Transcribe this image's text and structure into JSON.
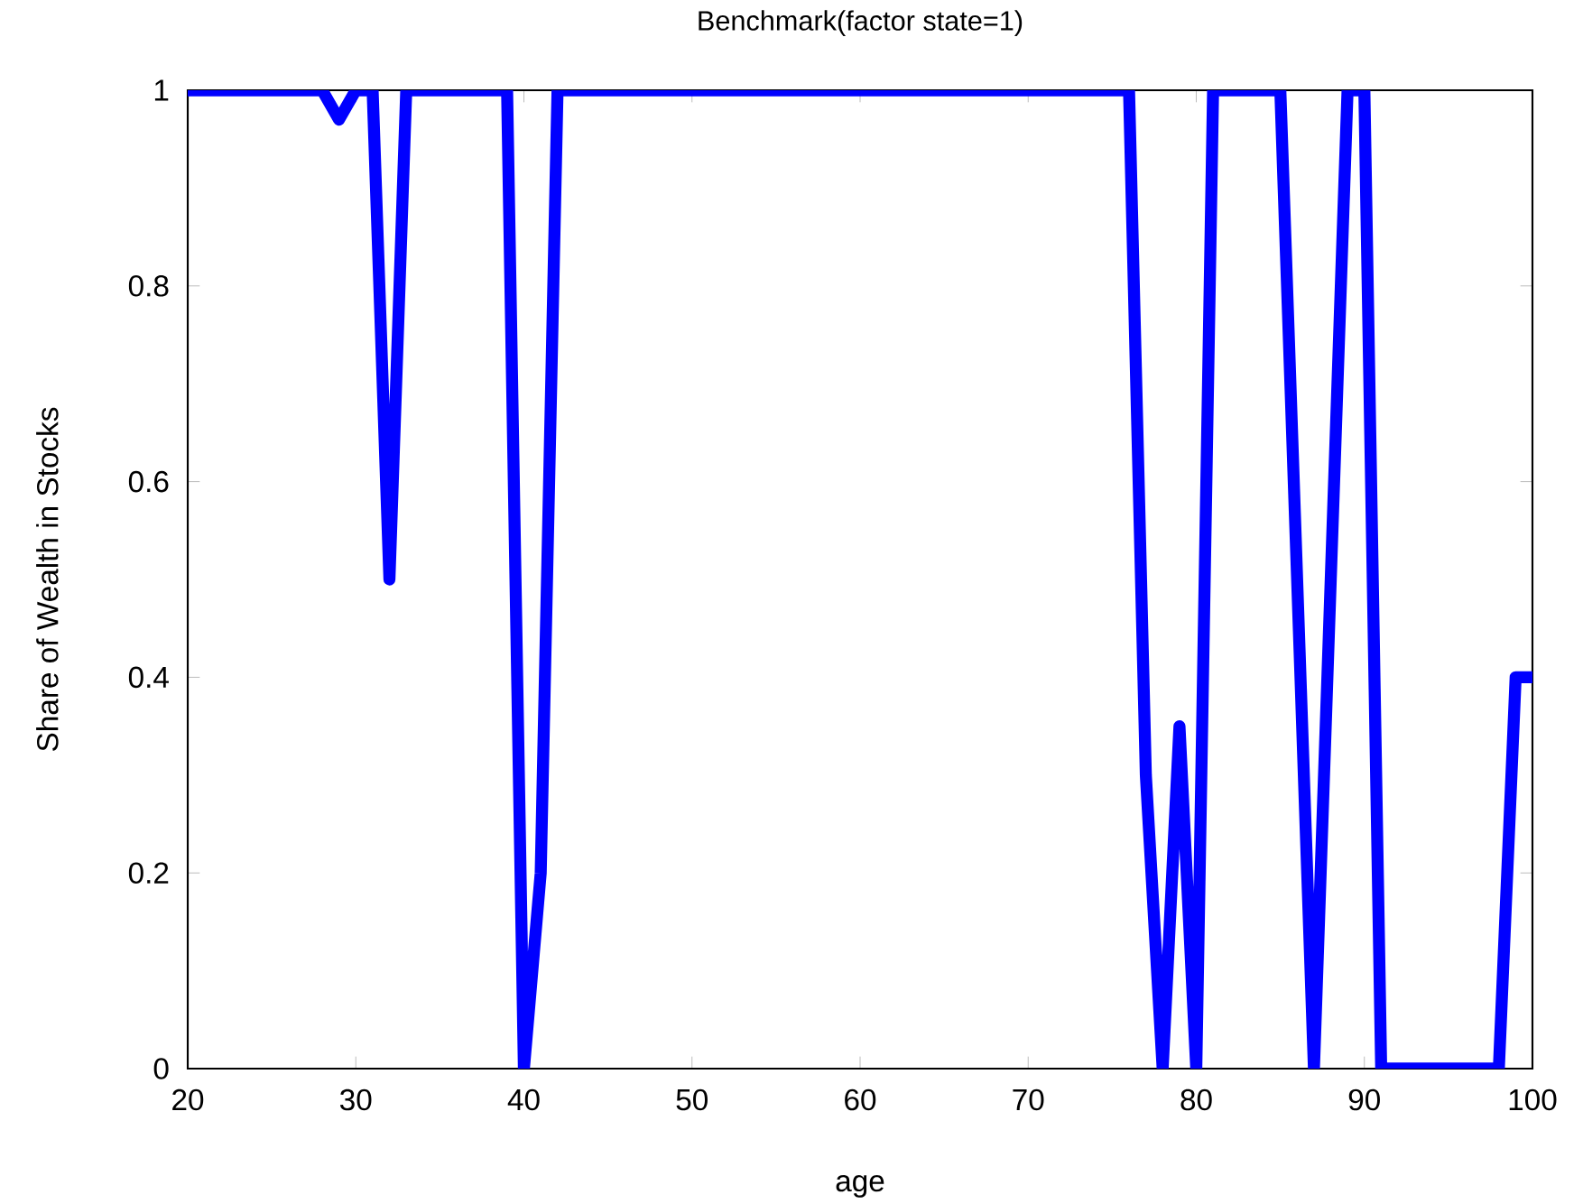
{
  "chart_data": {
    "type": "line",
    "title": "Benchmark(factor state=1)",
    "xlabel": "age",
    "ylabel": "Share of Wealth in Stocks",
    "x": [
      20,
      21,
      22,
      23,
      24,
      25,
      26,
      27,
      28,
      29,
      30,
      31,
      32,
      33,
      34,
      35,
      36,
      37,
      38,
      39,
      40,
      41,
      42,
      43,
      44,
      45,
      46,
      47,
      48,
      49,
      50,
      51,
      52,
      53,
      54,
      55,
      56,
      57,
      58,
      59,
      60,
      61,
      62,
      63,
      64,
      65,
      66,
      67,
      68,
      69,
      70,
      71,
      72,
      73,
      74,
      75,
      76,
      77,
      78,
      79,
      80,
      81,
      82,
      83,
      84,
      85,
      86,
      87,
      88,
      89,
      90,
      91,
      92,
      93,
      94,
      95,
      96,
      97,
      98,
      99,
      100
    ],
    "series": [
      {
        "color": "#0000ff",
        "values": [
          1,
          1,
          1,
          1,
          1,
          1,
          1,
          1,
          1,
          0.97,
          1,
          1,
          0.5,
          1,
          1,
          1,
          1,
          1,
          1,
          1,
          0,
          0.2,
          1,
          1,
          1,
          1,
          1,
          1,
          1,
          1,
          1,
          1,
          1,
          1,
          1,
          1,
          1,
          1,
          1,
          1,
          1,
          1,
          1,
          1,
          1,
          1,
          1,
          1,
          1,
          1,
          1,
          1,
          1,
          1,
          1,
          1,
          1,
          0.3,
          0,
          0.35,
          0,
          1,
          1,
          1,
          1,
          1,
          0.5,
          0,
          0.5,
          1,
          1,
          0,
          0,
          0,
          0,
          0,
          0,
          0,
          0,
          0.4,
          0.4
        ]
      }
    ],
    "xlim": [
      20,
      100
    ],
    "ylim": [
      0,
      1
    ],
    "xticks": [
      20,
      30,
      40,
      50,
      60,
      70,
      80,
      90,
      100
    ],
    "yticks": [
      0,
      0.2,
      0.4,
      0.6,
      0.8,
      1
    ],
    "grid": false,
    "marker": "none",
    "line_style": "solid"
  }
}
